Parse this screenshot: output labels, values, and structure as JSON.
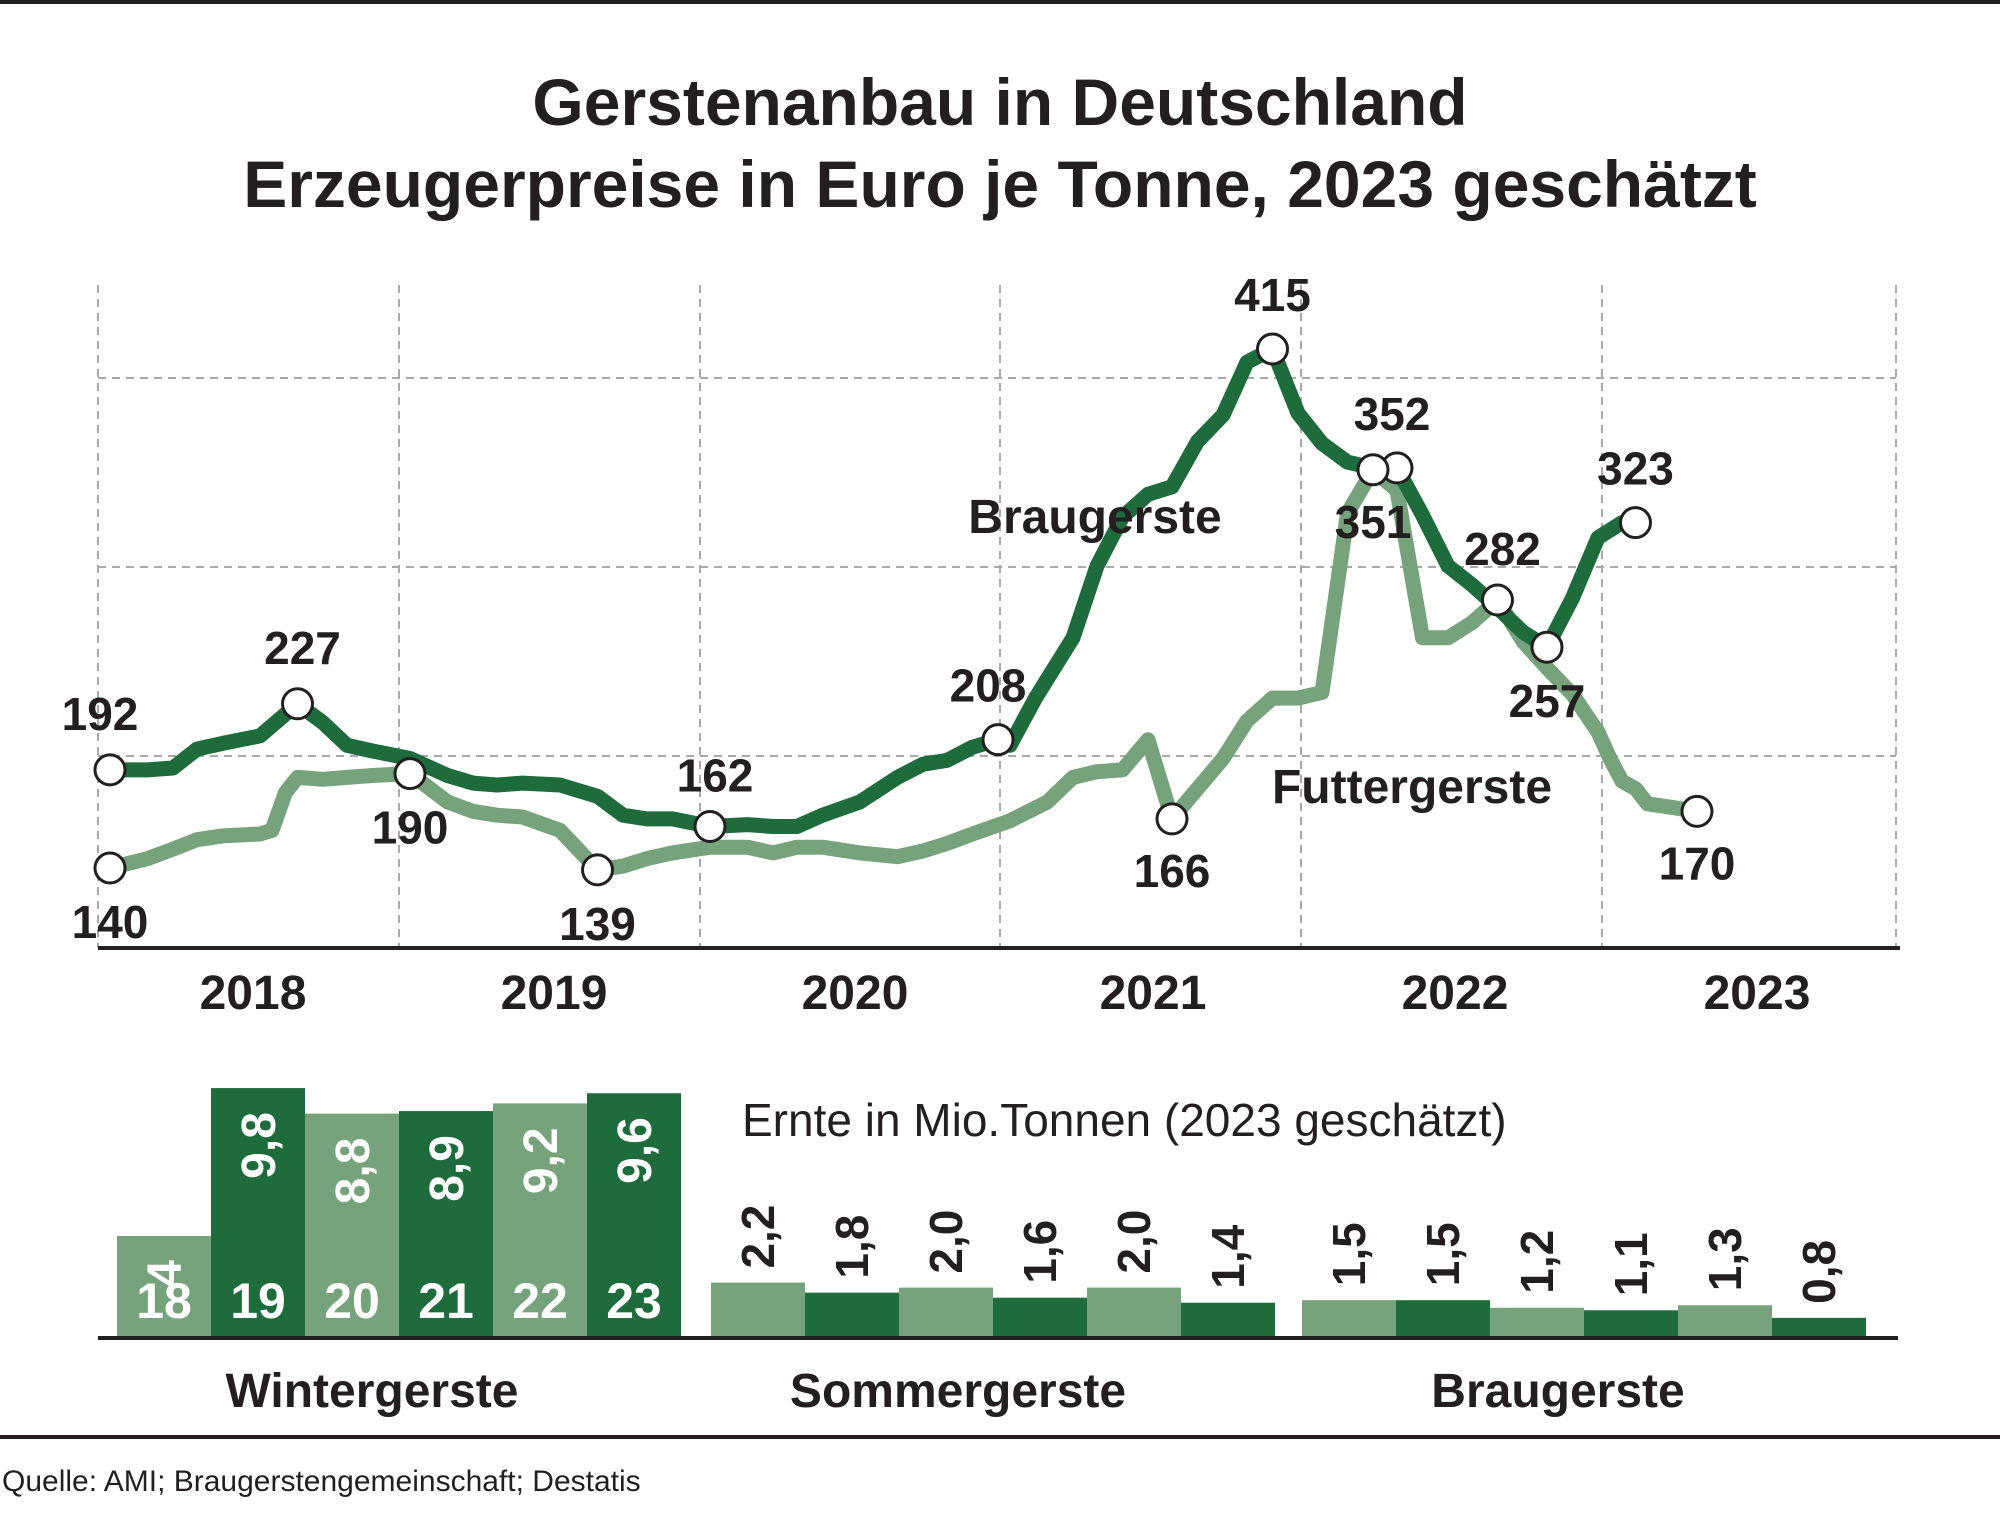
{
  "colors": {
    "dark_green": "#1e6b3c",
    "light_green": "#76a27c",
    "text": "#231f20",
    "grid": "#a7a9ac"
  },
  "chart_data": [
    {
      "type": "line",
      "title": "Gerstenanbau in Deutschland",
      "subtitle": "Erzeugerpreise in Euro je Tonne, 2023 geschätzt",
      "x_tick_labels": [
        "2018",
        "2019",
        "2020",
        "2021",
        "2022",
        "2023"
      ],
      "ylim": [
        120,
        440
      ],
      "grid": true,
      "series": [
        {
          "name": "Braugerste",
          "color": "#1e6b3c",
          "points": [
            [
              0.0,
              192
            ],
            [
              0.25,
              192
            ],
            [
              0.42,
              193
            ],
            [
              0.58,
              203
            ],
            [
              0.75,
              206
            ],
            [
              1.0,
              210
            ],
            [
              1.25,
              227
            ],
            [
              1.42,
              217
            ],
            [
              1.58,
              205
            ],
            [
              1.75,
              202
            ],
            [
              2.0,
              198
            ],
            [
              2.25,
              189
            ],
            [
              2.42,
              185
            ],
            [
              2.58,
              184
            ],
            [
              2.75,
              185
            ],
            [
              3.0,
              184
            ],
            [
              3.25,
              178
            ],
            [
              3.42,
              168
            ],
            [
              3.58,
              166
            ],
            [
              3.75,
              166
            ],
            [
              4.0,
              162
            ],
            [
              4.25,
              163
            ],
            [
              4.42,
              162
            ],
            [
              4.58,
              162
            ],
            [
              4.75,
              168
            ],
            [
              5.0,
              175
            ],
            [
              5.25,
              188
            ],
            [
              5.42,
              195
            ],
            [
              5.58,
              197
            ],
            [
              5.75,
              204
            ],
            [
              5.92,
              208
            ],
            [
              6.0,
              205
            ],
            [
              6.17,
              230
            ],
            [
              6.42,
              262
            ],
            [
              6.58,
              300
            ],
            [
              6.75,
              326
            ],
            [
              6.92,
              338
            ],
            [
              7.08,
              342
            ],
            [
              7.25,
              366
            ],
            [
              7.42,
              380
            ],
            [
              7.58,
              408
            ],
            [
              7.75,
              415
            ],
            [
              7.92,
              381
            ],
            [
              8.08,
              365
            ],
            [
              8.25,
              355
            ],
            [
              8.42,
              352
            ],
            [
              8.58,
              352
            ],
            [
              8.75,
              327
            ],
            [
              8.92,
              300
            ],
            [
              9.08,
              290
            ],
            [
              9.25,
              278
            ],
            [
              9.42,
              265
            ],
            [
              9.58,
              257
            ],
            [
              9.75,
              283
            ],
            [
              9.92,
              315
            ],
            [
              10.08,
              323
            ],
            [
              10.17,
              323
            ]
          ],
          "labeled_points": [
            {
              "x": 0.0,
              "y": 192,
              "label": "192"
            },
            {
              "x": 1.25,
              "y": 227,
              "label": "227"
            },
            {
              "x": 4.0,
              "y": 162,
              "label": "162"
            },
            {
              "x": 5.92,
              "y": 208,
              "label": "208"
            },
            {
              "x": 7.75,
              "y": 415,
              "label": "415"
            },
            {
              "x": 8.58,
              "y": 352,
              "label": "352"
            },
            {
              "x": 9.58,
              "y": 257,
              "label": "257"
            },
            {
              "x": 10.17,
              "y": 323,
              "label": "323"
            }
          ]
        },
        {
          "name": "Futtergerste",
          "color": "#76a27c",
          "points": [
            [
              0.0,
              140
            ],
            [
              0.25,
              145
            ],
            [
              0.42,
              150
            ],
            [
              0.58,
              155
            ],
            [
              0.75,
              157
            ],
            [
              1.0,
              158
            ],
            [
              1.08,
              160
            ],
            [
              1.17,
              180
            ],
            [
              1.25,
              188
            ],
            [
              1.42,
              187
            ],
            [
              1.58,
              188
            ],
            [
              1.75,
              189
            ],
            [
              2.0,
              190
            ],
            [
              2.25,
              175
            ],
            [
              2.42,
              170
            ],
            [
              2.58,
              168
            ],
            [
              2.75,
              167
            ],
            [
              3.0,
              160
            ],
            [
              3.25,
              139
            ],
            [
              3.42,
              141
            ],
            [
              3.58,
              145
            ],
            [
              3.75,
              148
            ],
            [
              4.0,
              151
            ],
            [
              4.25,
              151
            ],
            [
              4.42,
              148
            ],
            [
              4.58,
              151
            ],
            [
              4.75,
              151
            ],
            [
              5.0,
              148
            ],
            [
              5.25,
              146
            ],
            [
              5.42,
              149
            ],
            [
              5.58,
              153
            ],
            [
              5.75,
              158
            ],
            [
              6.0,
              165
            ],
            [
              6.25,
              175
            ],
            [
              6.42,
              188
            ],
            [
              6.58,
              191
            ],
            [
              6.75,
              192
            ],
            [
              6.92,
              208
            ],
            [
              7.08,
              166
            ],
            [
              7.25,
              182
            ],
            [
              7.42,
              198
            ],
            [
              7.58,
              218
            ],
            [
              7.75,
              230
            ],
            [
              7.92,
              230
            ],
            [
              8.08,
              233
            ],
            [
              8.25,
              328
            ],
            [
              8.42,
              351
            ],
            [
              8.58,
              340
            ],
            [
              8.75,
              262
            ],
            [
              8.92,
              262
            ],
            [
              9.08,
              270
            ],
            [
              9.25,
              282
            ],
            [
              9.42,
              260
            ],
            [
              9.58,
              246
            ],
            [
              9.75,
              232
            ],
            [
              9.92,
              212
            ],
            [
              10.0,
              198
            ],
            [
              10.08,
              186
            ],
            [
              10.17,
              182
            ],
            [
              10.25,
              174
            ],
            [
              10.42,
              172
            ],
            [
              10.58,
              170
            ]
          ],
          "labeled_points": [
            {
              "x": 0.0,
              "y": 140,
              "label": "140"
            },
            {
              "x": 2.0,
              "y": 190,
              "label": "190"
            },
            {
              "x": 3.25,
              "y": 139,
              "label": "139"
            },
            {
              "x": 7.08,
              "y": 166,
              "label": "166"
            },
            {
              "x": 8.42,
              "y": 351,
              "label": "351"
            },
            {
              "x": 9.25,
              "y": 282,
              "label": "282"
            },
            {
              "x": 10.58,
              "y": 170,
              "label": "170"
            }
          ]
        }
      ]
    },
    {
      "type": "bar",
      "title": "Ernte  in Mio.Tonnen (2023 geschätzt)",
      "unit": "Mio. Tonnen",
      "groups": [
        {
          "name": "Wintergerste",
          "bars": [
            {
              "year": "18",
              "value": 4.0,
              "label": "4",
              "shade": "light"
            },
            {
              "year": "19",
              "value": 9.8,
              "label": "9,8",
              "shade": "dark"
            },
            {
              "year": "20",
              "value": 8.8,
              "label": "8,8",
              "shade": "light"
            },
            {
              "year": "21",
              "value": 8.9,
              "label": "8,9",
              "shade": "dark"
            },
            {
              "year": "22",
              "value": 9.2,
              "label": "9,2",
              "shade": "light"
            },
            {
              "year": "23",
              "value": 9.6,
              "label": "9,6",
              "shade": "dark"
            }
          ]
        },
        {
          "name": "Sommergerste",
          "bars": [
            {
              "value": 2.2,
              "label": "2,2",
              "shade": "light"
            },
            {
              "value": 1.8,
              "label": "1,8",
              "shade": "dark"
            },
            {
              "value": 2.0,
              "label": "2,0",
              "shade": "light"
            },
            {
              "value": 1.6,
              "label": "1,6",
              "shade": "dark"
            },
            {
              "value": 2.0,
              "label": "2,0",
              "shade": "light"
            },
            {
              "value": 1.4,
              "label": "1,4",
              "shade": "dark"
            }
          ]
        },
        {
          "name": "Braugerste",
          "bars": [
            {
              "value": 1.5,
              "label": "1,5",
              "shade": "light"
            },
            {
              "value": 1.5,
              "label": "1,5",
              "shade": "dark"
            },
            {
              "value": 1.2,
              "label": "1,2",
              "shade": "light"
            },
            {
              "value": 1.1,
              "label": "1,1",
              "shade": "dark"
            },
            {
              "value": 1.3,
              "label": "1,3",
              "shade": "light"
            },
            {
              "value": 0.8,
              "label": "0,8",
              "shade": "dark"
            }
          ]
        }
      ]
    }
  ],
  "source": "Quelle: AMI; Braugerstengemeinschaft; Destatis"
}
